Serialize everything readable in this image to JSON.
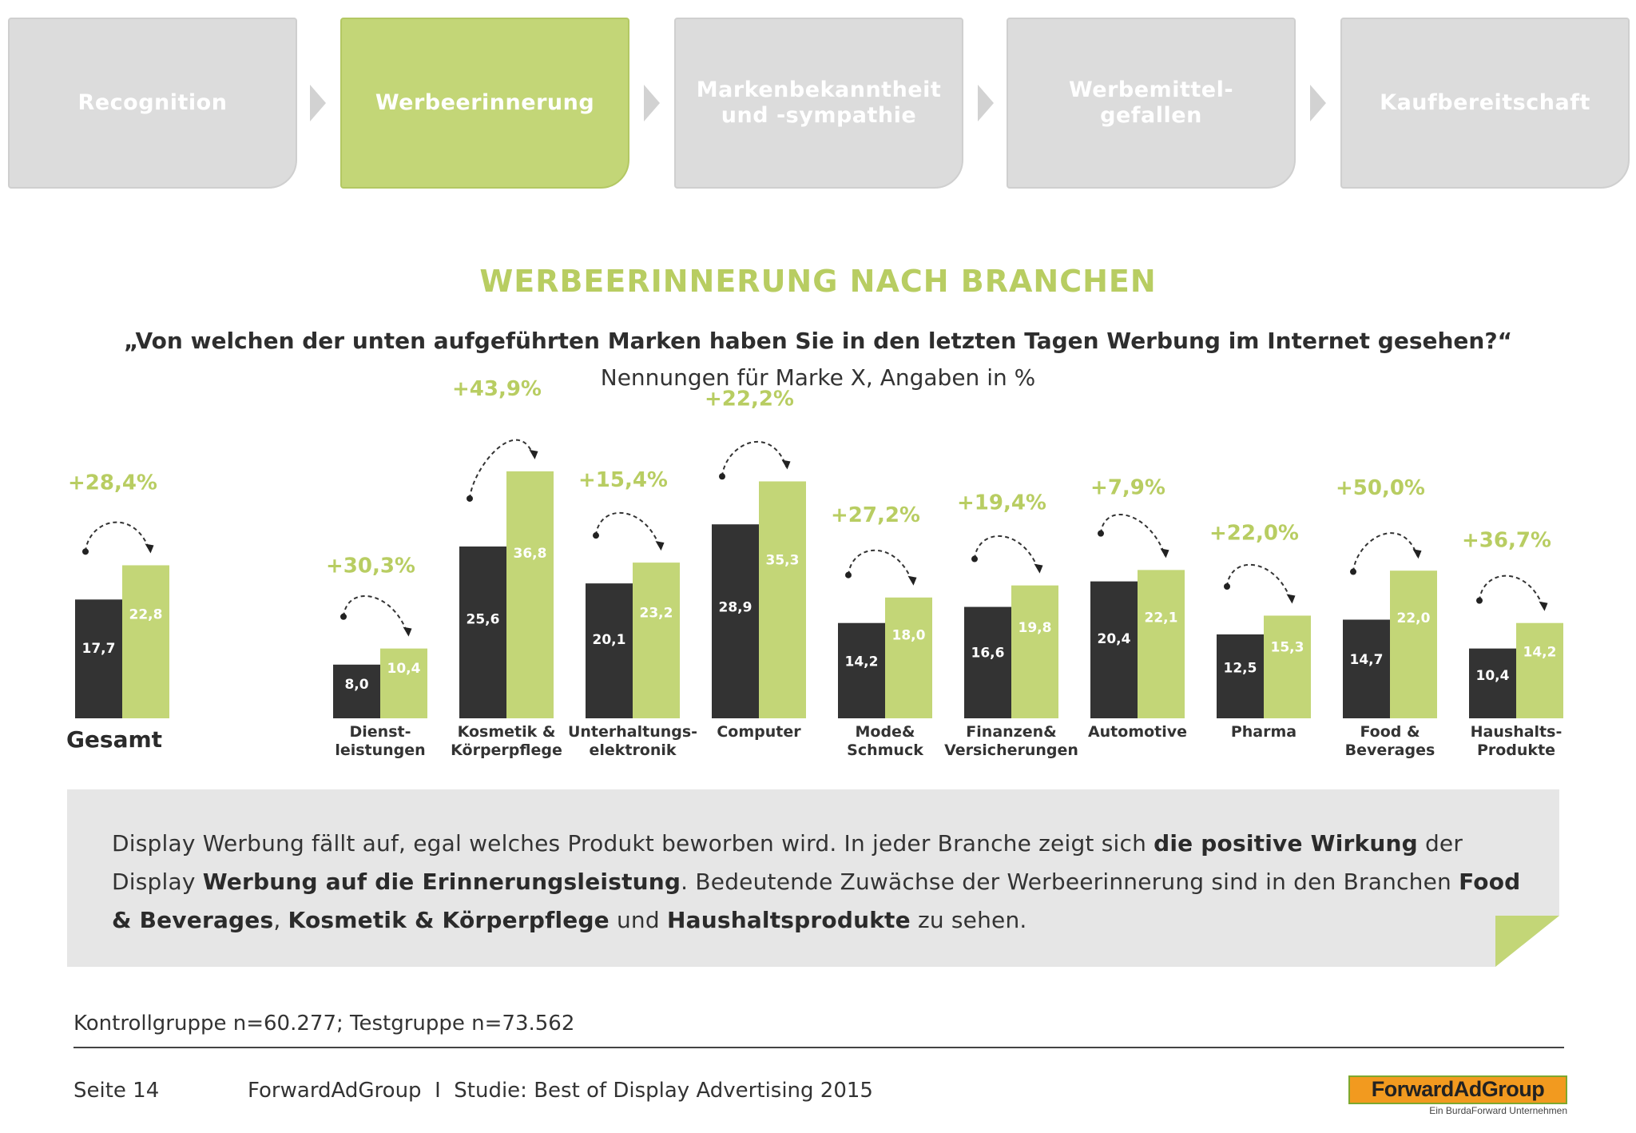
{
  "process": {
    "steps": [
      {
        "label": "Recognition",
        "active": false
      },
      {
        "label": "Werbeerinnerung",
        "active": true
      },
      {
        "label": "Markenbekanntheit\nund -sympathie",
        "active": false
      },
      {
        "label": "Werbemittel-\ngefallen",
        "active": false
      },
      {
        "label": "Kaufbereitschaft",
        "active": false
      }
    ]
  },
  "header": {
    "title": "WERBEERINNERUNG NACH BRANCHEN",
    "question": "„Von welchen der unten aufgeführten Marken haben Sie in den letzten Tagen Werbung im Internet gesehen?“",
    "subtitle": "Nennungen für Marke X, Angaben in %"
  },
  "colors": {
    "control": "#333333",
    "test": "#c3d677",
    "accent": "#b8cd62",
    "step_inactive": "#dcdcdc"
  },
  "chart_data": {
    "type": "bar",
    "title": "WERBEERINNERUNG NACH BRANCHEN",
    "xlabel": "",
    "ylabel": "Angaben in %",
    "ylim": [
      0,
      40
    ],
    "grid": false,
    "categories": [
      "Gesamt",
      "Dienst-\nleistungen",
      "Kosmetik &\nKörperpflege",
      "Unterhaltungs-\nelektronik",
      "Computer",
      "Mode&\nSchmuck",
      "Finanzen&\nVersicherungen",
      "Automotive",
      "Pharma",
      "Food &\nBeverages",
      "Haushalts-\nProdukte"
    ],
    "series": [
      {
        "name": "Kontrollgruppe",
        "values": [
          17.7,
          8.0,
          25.6,
          20.1,
          28.9,
          14.2,
          16.6,
          20.4,
          12.5,
          14.7,
          10.4
        ],
        "labels": [
          "17,7",
          "8,0",
          "25,6",
          "20,1",
          "28,9",
          "14,2",
          "16,6",
          "20,4",
          "12,5",
          "14,7",
          "10,4"
        ]
      },
      {
        "name": "Testgruppe",
        "values": [
          22.8,
          10.4,
          36.8,
          23.2,
          35.3,
          18.0,
          19.8,
          22.1,
          15.3,
          22.0,
          14.2
        ],
        "labels": [
          "22,8",
          "10,4",
          "36,8",
          "23,2",
          "35,3",
          "18,0",
          "19,8",
          "22,1",
          "15,3",
          "22,0",
          "14,2"
        ]
      }
    ],
    "uplift": [
      "+28,4%",
      "+30,3%",
      "+43,9%",
      "+15,4%",
      "+22,2%",
      "+27,2%",
      "+19,4%",
      "+7,9%",
      "+22,0%",
      "+50,0%",
      "+36,7%"
    ]
  },
  "callout": {
    "parts": [
      {
        "text": "Display Werbung fällt auf, egal welches Produkt beworben wird. In jeder Branche zeigt sich ",
        "bold": false
      },
      {
        "text": "die positive Wirkung",
        "bold": true
      },
      {
        "text": " der Display ",
        "bold": false
      },
      {
        "text": "Werbung auf die Erinnerungsleistung",
        "bold": true
      },
      {
        "text": ". Bedeutende Zuwächse der Werbeerinnerung sind in den Branchen ",
        "bold": false
      },
      {
        "text": "Food & Beverages",
        "bold": true
      },
      {
        "text": ", ",
        "bold": false
      },
      {
        "text": "Kosmetik & Körperpflege",
        "bold": true
      },
      {
        "text": " und ",
        "bold": false
      },
      {
        "text": "Haushaltsprodukte",
        "bold": true
      },
      {
        "text": " zu sehen.",
        "bold": false
      }
    ]
  },
  "footer": {
    "sample": "Kontrollgruppe n=60.277; Testgruppe n=73.562",
    "page": "Seite 14",
    "study": "ForwardAdGroup  I  Studie: Best of Display Advertising 2015",
    "logo": "ForwardAdGroup",
    "logo_sub": "Ein BurdaForward Unternehmen"
  }
}
